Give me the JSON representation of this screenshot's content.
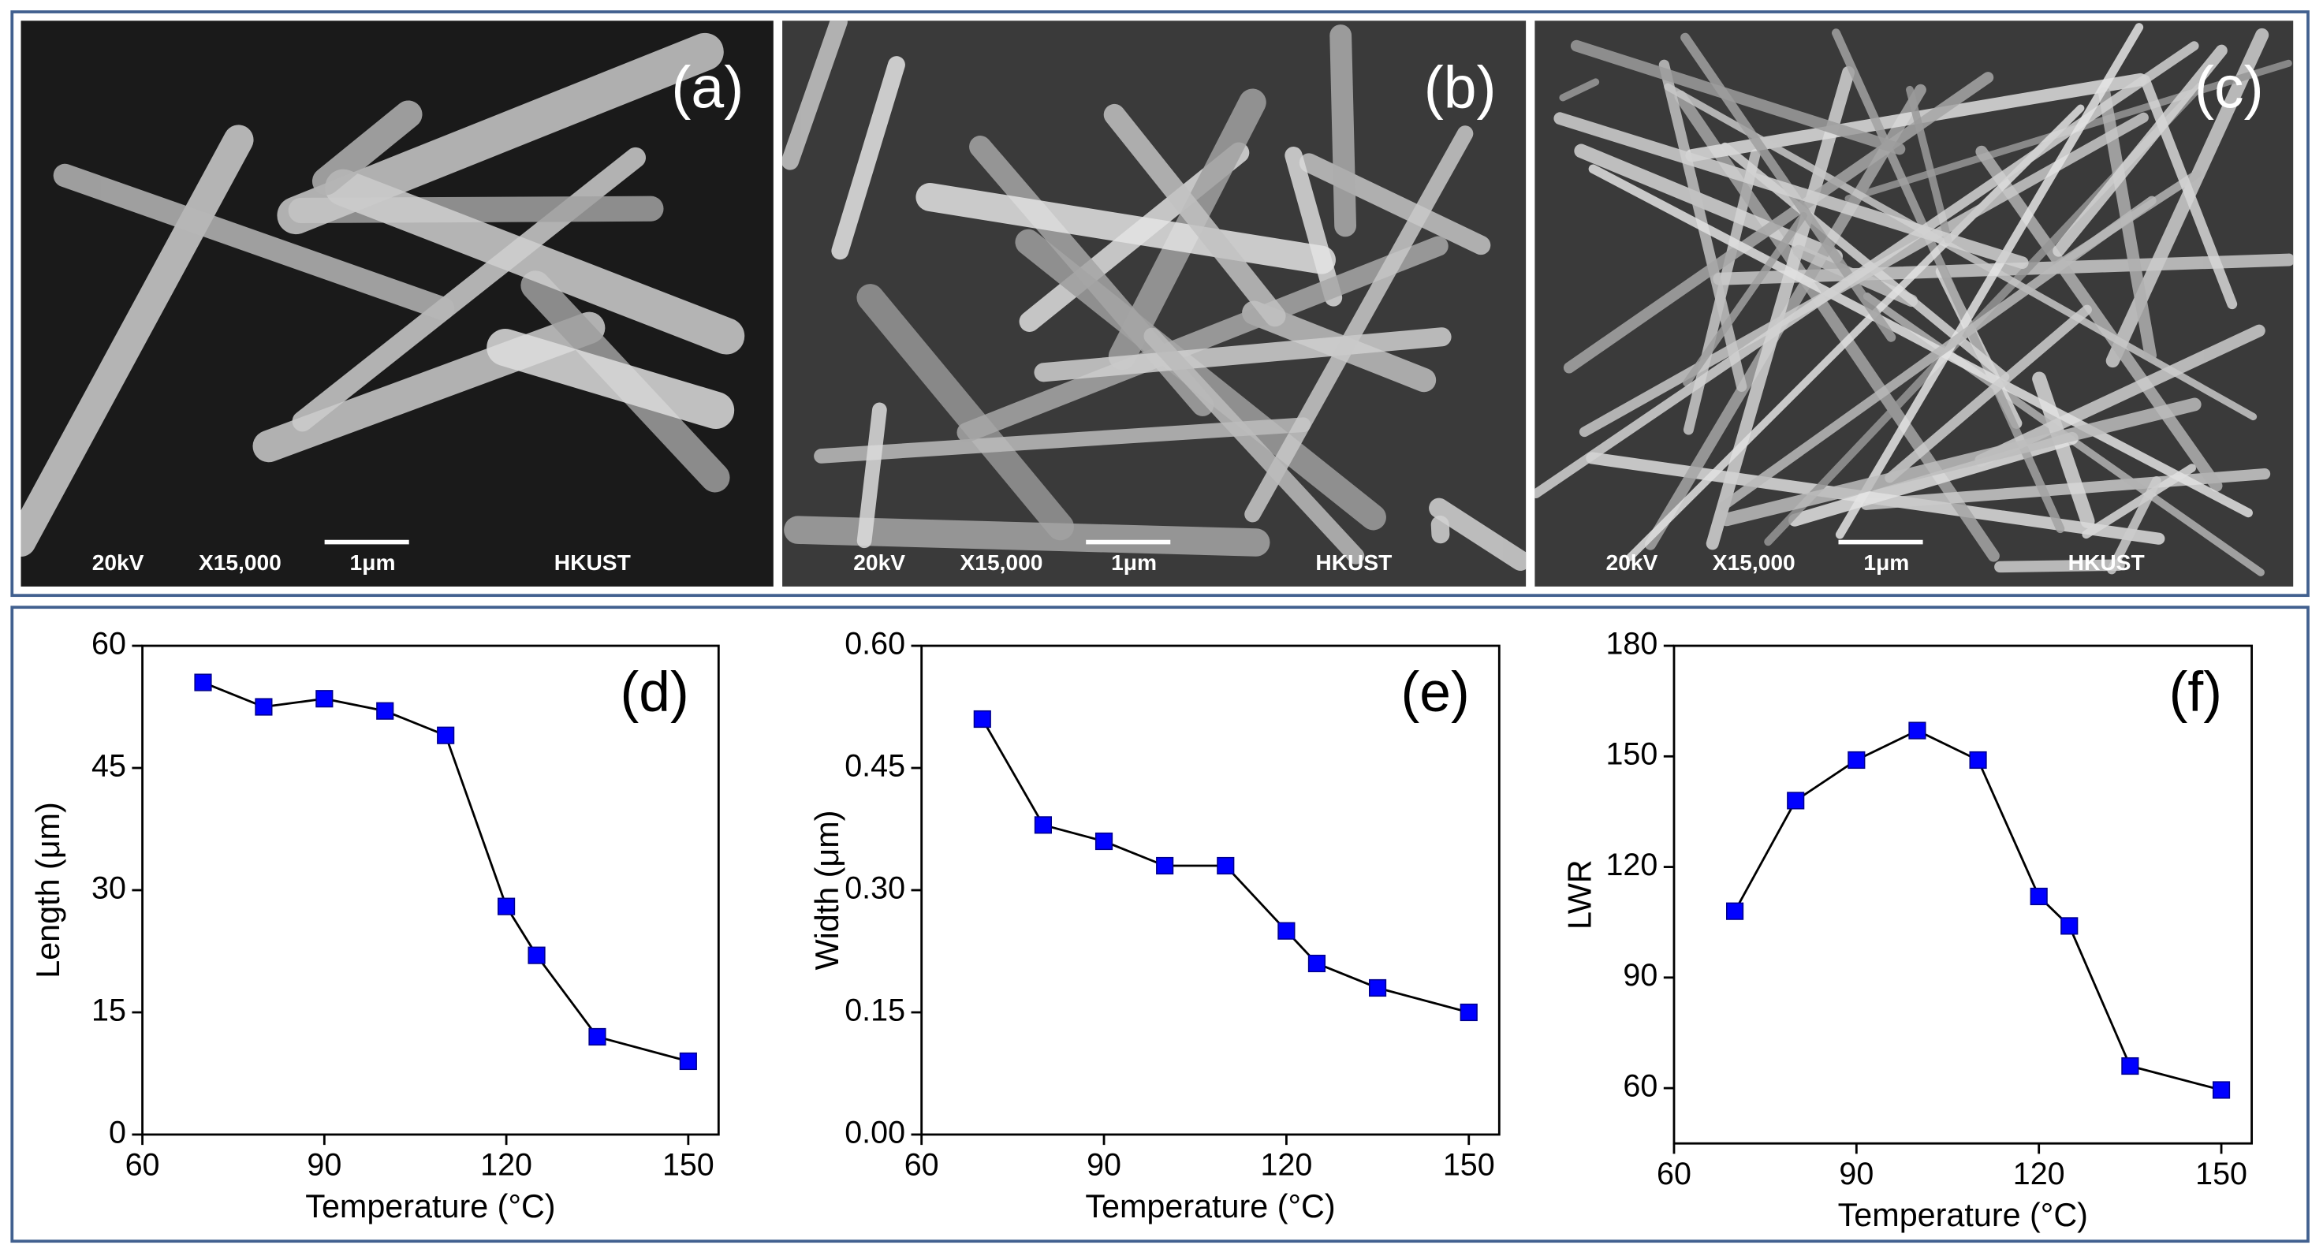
{
  "images": [
    {
      "label": "(a)",
      "voltage": "20kV",
      "magnification": "X15,000",
      "scale": "1μm",
      "institute": "HKUST"
    },
    {
      "label": "(b)",
      "voltage": "20kV",
      "magnification": "X15,000",
      "scale": "1μm",
      "institute": "HKUST"
    },
    {
      "label": "(c)",
      "voltage": "20kV",
      "magnification": "X15,000",
      "scale": "1μm",
      "institute": "HKUST"
    }
  ],
  "chart_data": [
    {
      "type": "line",
      "label": "(d)",
      "x_label": "Temperature (°C)",
      "y_label": "Length (μm)",
      "x": [
        70,
        80,
        90,
        100,
        110,
        120,
        125,
        135,
        150
      ],
      "values": [
        55.5,
        52.5,
        53.5,
        52,
        49,
        28,
        22,
        12,
        9
      ],
      "color": "#0000ff",
      "xlim": [
        60,
        155
      ],
      "xticks": [
        60,
        90,
        120,
        150
      ],
      "ylim": [
        0,
        60
      ],
      "yticks": [
        0,
        15,
        30,
        45,
        60
      ]
    },
    {
      "type": "line",
      "label": "(e)",
      "x_label": "Temperature (°C)",
      "y_label": "Width (μm)",
      "x": [
        70,
        80,
        90,
        100,
        110,
        120,
        125,
        135,
        150
      ],
      "values": [
        0.51,
        0.38,
        0.36,
        0.33,
        0.33,
        0.25,
        0.21,
        0.18,
        0.15
      ],
      "color": "#0000ff",
      "xlim": [
        60,
        155
      ],
      "xticks": [
        60,
        90,
        120,
        150
      ],
      "ylim": [
        0,
        0.6
      ],
      "yticks": [
        {
          "value": 0,
          "label": "0.00"
        },
        {
          "value": 0.15,
          "label": "0.15"
        },
        {
          "value": 0.3,
          "label": "0.30"
        },
        {
          "value": 0.45,
          "label": "0.45"
        },
        {
          "value": 0.6,
          "label": "0.60"
        }
      ]
    },
    {
      "type": "line",
      "label": "(f)",
      "x_label": "Temperature (°C)",
      "y_label": "LWR",
      "x": [
        70,
        80,
        90,
        100,
        110,
        120,
        125,
        135,
        150
      ],
      "values": [
        108,
        138,
        149,
        157,
        149,
        112,
        104,
        66,
        59.5
      ],
      "color": "#0000ff",
      "xlim": [
        60,
        155
      ],
      "xticks": [
        60,
        90,
        120,
        150
      ],
      "ylim": [
        45,
        180
      ],
      "yticks": [
        60,
        90,
        120,
        150,
        180
      ]
    }
  ]
}
